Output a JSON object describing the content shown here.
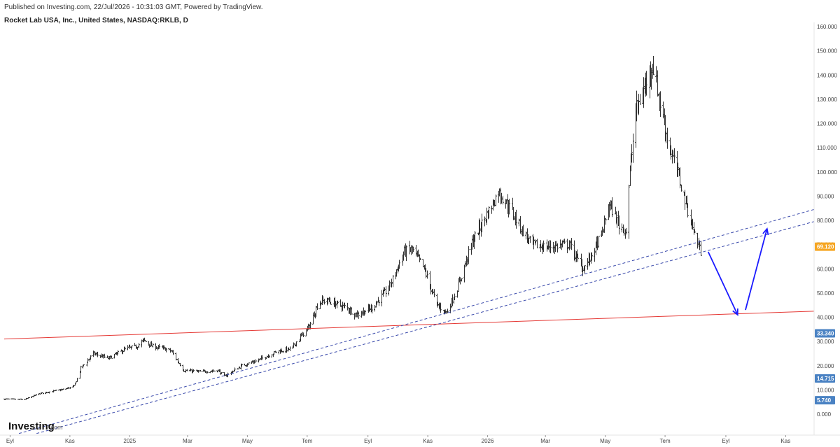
{
  "header": {
    "published": "Published on Investing.com, 22/Jul/2026 - 10:31:03 GMT, Powered by TradingView.",
    "title": "Rocket Lab USA, Inc., United States, NASDAQ:RKLB, D"
  },
  "logo": {
    "main": "Investing",
    "suffix": ".com"
  },
  "chart_data": {
    "type": "ohlc",
    "y_range": [
      -6,
      161
    ],
    "y_ticks": [
      "160.000",
      "150.000",
      "140.000",
      "130.000",
      "120.000",
      "110.000",
      "100.000",
      "90.000",
      "80.000",
      "70.000",
      "60.000",
      "50.000",
      "40.000",
      "30.000",
      "20.000",
      "10.000",
      "0.000"
    ],
    "y_tick_values": [
      160,
      150,
      140,
      130,
      120,
      110,
      100,
      90,
      80,
      70,
      60,
      50,
      40,
      30,
      20,
      10,
      0
    ],
    "x_ticks": [
      "Eyl",
      "Kas",
      "2025",
      "Mar",
      "May",
      "Tem",
      "Eyl",
      "Kas",
      "2026",
      "Mar",
      "May",
      "Tem",
      "Eyl",
      "Kas"
    ],
    "price_series_keypoints": [
      {
        "date": "2024-08-26",
        "value": 6.2
      },
      {
        "date": "2024-09-15",
        "value": 6.0
      },
      {
        "date": "2024-10-01",
        "value": 8.5
      },
      {
        "date": "2024-10-25",
        "value": 10.2
      },
      {
        "date": "2024-11-05",
        "value": 11.5
      },
      {
        "date": "2024-11-12",
        "value": 19
      },
      {
        "date": "2024-11-25",
        "value": 25
      },
      {
        "date": "2024-12-10",
        "value": 23
      },
      {
        "date": "2024-12-28",
        "value": 27
      },
      {
        "date": "2025-01-08",
        "value": 28
      },
      {
        "date": "2025-01-15",
        "value": 30.5
      },
      {
        "date": "2025-01-24",
        "value": 28
      },
      {
        "date": "2025-02-05",
        "value": 27
      },
      {
        "date": "2025-02-12",
        "value": 26
      },
      {
        "date": "2025-02-25",
        "value": 18
      },
      {
        "date": "2025-03-15",
        "value": 17.5
      },
      {
        "date": "2025-04-01",
        "value": 18
      },
      {
        "date": "2025-04-07",
        "value": 15.5
      },
      {
        "date": "2025-04-25",
        "value": 20
      },
      {
        "date": "2025-05-10",
        "value": 22
      },
      {
        "date": "2025-06-01",
        "value": 26
      },
      {
        "date": "2025-06-15",
        "value": 27
      },
      {
        "date": "2025-06-22",
        "value": 31
      },
      {
        "date": "2025-07-01",
        "value": 35
      },
      {
        "date": "2025-07-05",
        "value": 38
      },
      {
        "date": "2025-07-12",
        "value": 46
      },
      {
        "date": "2025-07-20",
        "value": 47
      },
      {
        "date": "2025-08-10",
        "value": 44
      },
      {
        "date": "2025-08-20",
        "value": 41
      },
      {
        "date": "2025-09-05",
        "value": 44
      },
      {
        "date": "2025-09-22",
        "value": 52
      },
      {
        "date": "2025-10-08",
        "value": 67
      },
      {
        "date": "2025-10-16",
        "value": 68
      },
      {
        "date": "2025-10-28",
        "value": 60
      },
      {
        "date": "2025-11-10",
        "value": 45
      },
      {
        "date": "2025-11-20",
        "value": 42
      },
      {
        "date": "2025-12-01",
        "value": 52
      },
      {
        "date": "2025-12-15",
        "value": 70
      },
      {
        "date": "2025-12-25",
        "value": 78
      },
      {
        "date": "2026-01-05",
        "value": 86
      },
      {
        "date": "2026-01-12",
        "value": 92
      },
      {
        "date": "2026-01-25",
        "value": 84
      },
      {
        "date": "2026-02-05",
        "value": 76
      },
      {
        "date": "2026-02-15",
        "value": 70
      },
      {
        "date": "2026-03-01",
        "value": 69
      },
      {
        "date": "2026-03-25",
        "value": 70
      },
      {
        "date": "2026-04-08",
        "value": 60
      },
      {
        "date": "2026-04-15",
        "value": 64
      },
      {
        "date": "2026-04-28",
        "value": 75
      },
      {
        "date": "2026-05-05",
        "value": 87
      },
      {
        "date": "2026-05-15",
        "value": 78
      },
      {
        "date": "2026-05-22",
        "value": 76
      },
      {
        "date": "2026-05-26",
        "value": 100
      },
      {
        "date": "2026-06-01",
        "value": 125
      },
      {
        "date": "2026-06-10",
        "value": 135
      },
      {
        "date": "2026-06-18",
        "value": 145
      },
      {
        "date": "2026-06-25",
        "value": 130
      },
      {
        "date": "2026-07-05",
        "value": 110
      },
      {
        "date": "2026-07-12",
        "value": 102
      },
      {
        "date": "2026-07-20",
        "value": 90
      },
      {
        "date": "2026-07-29",
        "value": 77
      },
      {
        "date": "2026-08-06",
        "value": 67
      }
    ],
    "lines": [
      {
        "name": "horizontal support (red)",
        "color": "#e53935",
        "style": "solid",
        "points": [
          {
            "date": "2024-08-26",
            "value": 31
          },
          {
            "date": "2026-11-30",
            "value": 42.5
          }
        ]
      },
      {
        "name": "channel upper (blue dashed)",
        "color": "#3949ab",
        "style": "dashed",
        "points": [
          {
            "date": "2024-09-10",
            "value": -8
          },
          {
            "date": "2026-11-30",
            "value": 84.5
          }
        ]
      },
      {
        "name": "channel lower (blue dashed)",
        "color": "#3949ab",
        "style": "dashed",
        "points": [
          {
            "date": "2024-09-28",
            "value": -8
          },
          {
            "date": "2026-11-30",
            "value": 79.5
          }
        ]
      }
    ],
    "arrows": [
      {
        "color": "#1a1aff",
        "from": {
          "date": "2026-08-14",
          "value": 67
        },
        "to": {
          "date": "2026-09-13",
          "value": 41
        }
      },
      {
        "color": "#1a1aff",
        "from": {
          "date": "2026-09-21",
          "value": 43
        },
        "to": {
          "date": "2026-10-13",
          "value": 76.5
        }
      }
    ],
    "price_labels": [
      {
        "text": "69.120",
        "value": 69.12,
        "color": "#f6a623"
      },
      {
        "text": "33.340",
        "value": 33.34,
        "color": "#4a82c3"
      },
      {
        "text": "14.715",
        "value": 14.715,
        "color": "#4a82c3"
      },
      {
        "text": "5.740",
        "value": 5.74,
        "color": "#4a82c3"
      }
    ]
  }
}
